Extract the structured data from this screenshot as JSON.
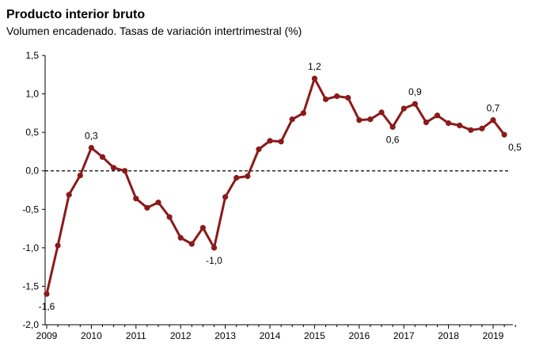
{
  "chart_data": {
    "type": "line",
    "title": "Producto interior bruto",
    "subtitle": "Volumen encadenado. Tasas de variación intertrimestral (%)",
    "xlabel": "",
    "ylabel": "",
    "ylim": [
      -2.0,
      1.5
    ],
    "y_ticks": [
      "1,5",
      "1,0",
      "0,5",
      "0,0",
      "-0,5",
      "-1,0",
      "-1,5",
      "-2,0"
    ],
    "y_tick_values": [
      1.5,
      1.0,
      0.5,
      0.0,
      -0.5,
      -1.0,
      -1.5,
      -2.0
    ],
    "x_tick_labels": [
      "2009",
      "2010",
      "2011",
      "2012",
      "2013",
      "2014",
      "2015",
      "2016",
      "2017",
      "2018",
      "2019"
    ],
    "reference_line": {
      "y": 0.0,
      "style": "dashed"
    },
    "grid": false,
    "legend": "none",
    "series": [
      {
        "color": "#8b1a1a",
        "values": [
          -1.6,
          -0.97,
          -0.31,
          -0.06,
          0.3,
          0.18,
          0.04,
          0.0,
          -0.36,
          -0.48,
          -0.41,
          -0.6,
          -0.87,
          -0.95,
          -0.74,
          -1.0,
          -0.34,
          -0.09,
          -0.07,
          0.28,
          0.39,
          0.38,
          0.67,
          0.75,
          1.2,
          0.93,
          0.97,
          0.95,
          0.66,
          0.67,
          0.76,
          0.57,
          0.81,
          0.87,
          0.63,
          0.72,
          0.62,
          0.59,
          0.53,
          0.55,
          0.66,
          0.47
        ]
      }
    ],
    "annotations": [
      {
        "index": 0,
        "text": "-1,6",
        "pos": "below"
      },
      {
        "index": 4,
        "text": "0,3",
        "pos": "above"
      },
      {
        "index": 15,
        "text": "-1,0",
        "pos": "below"
      },
      {
        "index": 24,
        "text": "1,2",
        "pos": "above"
      },
      {
        "index": 31,
        "text": "0,6",
        "pos": "below"
      },
      {
        "index": 33,
        "text": "0,9",
        "pos": "above"
      },
      {
        "index": 40,
        "text": "0,7",
        "pos": "above"
      },
      {
        "index": 41,
        "text": "0,5",
        "pos": "below-right"
      }
    ]
  }
}
